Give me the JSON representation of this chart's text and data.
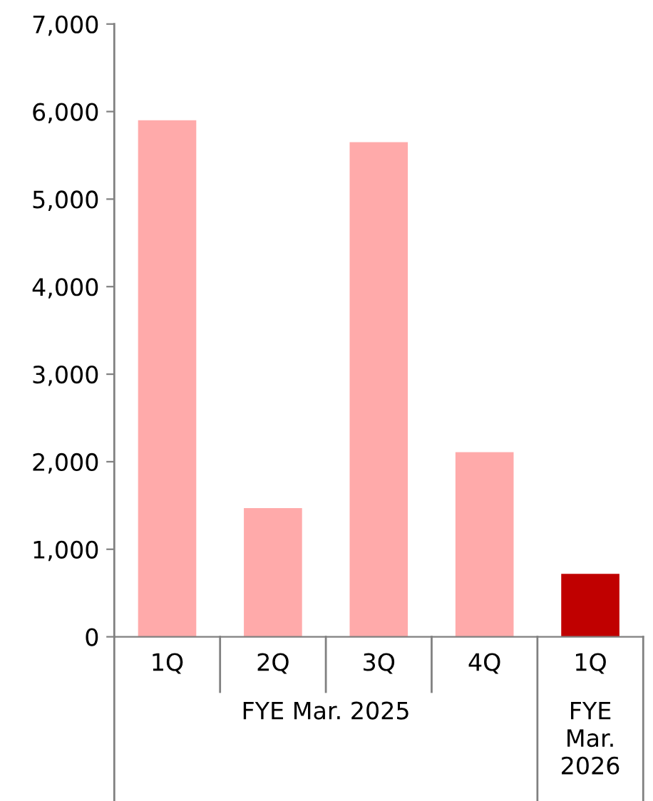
{
  "chart_data": {
    "type": "bar",
    "categories": [
      "1Q",
      "2Q",
      "3Q",
      "4Q",
      "1Q"
    ],
    "values": [
      5900,
      1470,
      5650,
      2110,
      720
    ],
    "colors": [
      "#ffaaaa",
      "#ffaaaa",
      "#ffaaaa",
      "#ffaaaa",
      "#c00000"
    ],
    "ylim": [
      0,
      7000
    ],
    "yticks": [
      0,
      {
        "value": 1000,
        "label": "1,000"
      },
      {
        "value": 2000,
        "label": "2,000"
      },
      {
        "value": 3000,
        "label": "3,000"
      },
      {
        "value": 4000,
        "label": "4,000"
      },
      {
        "value": 5000,
        "label": "5,000"
      },
      {
        "value": 6000,
        "label": "6,000"
      },
      {
        "value": 7000,
        "label": "7,000"
      }
    ],
    "grid": false,
    "legend": false,
    "annotations": [
      "FYE Mar. 2025",
      "FYE\nMar.\n2026"
    ]
  }
}
